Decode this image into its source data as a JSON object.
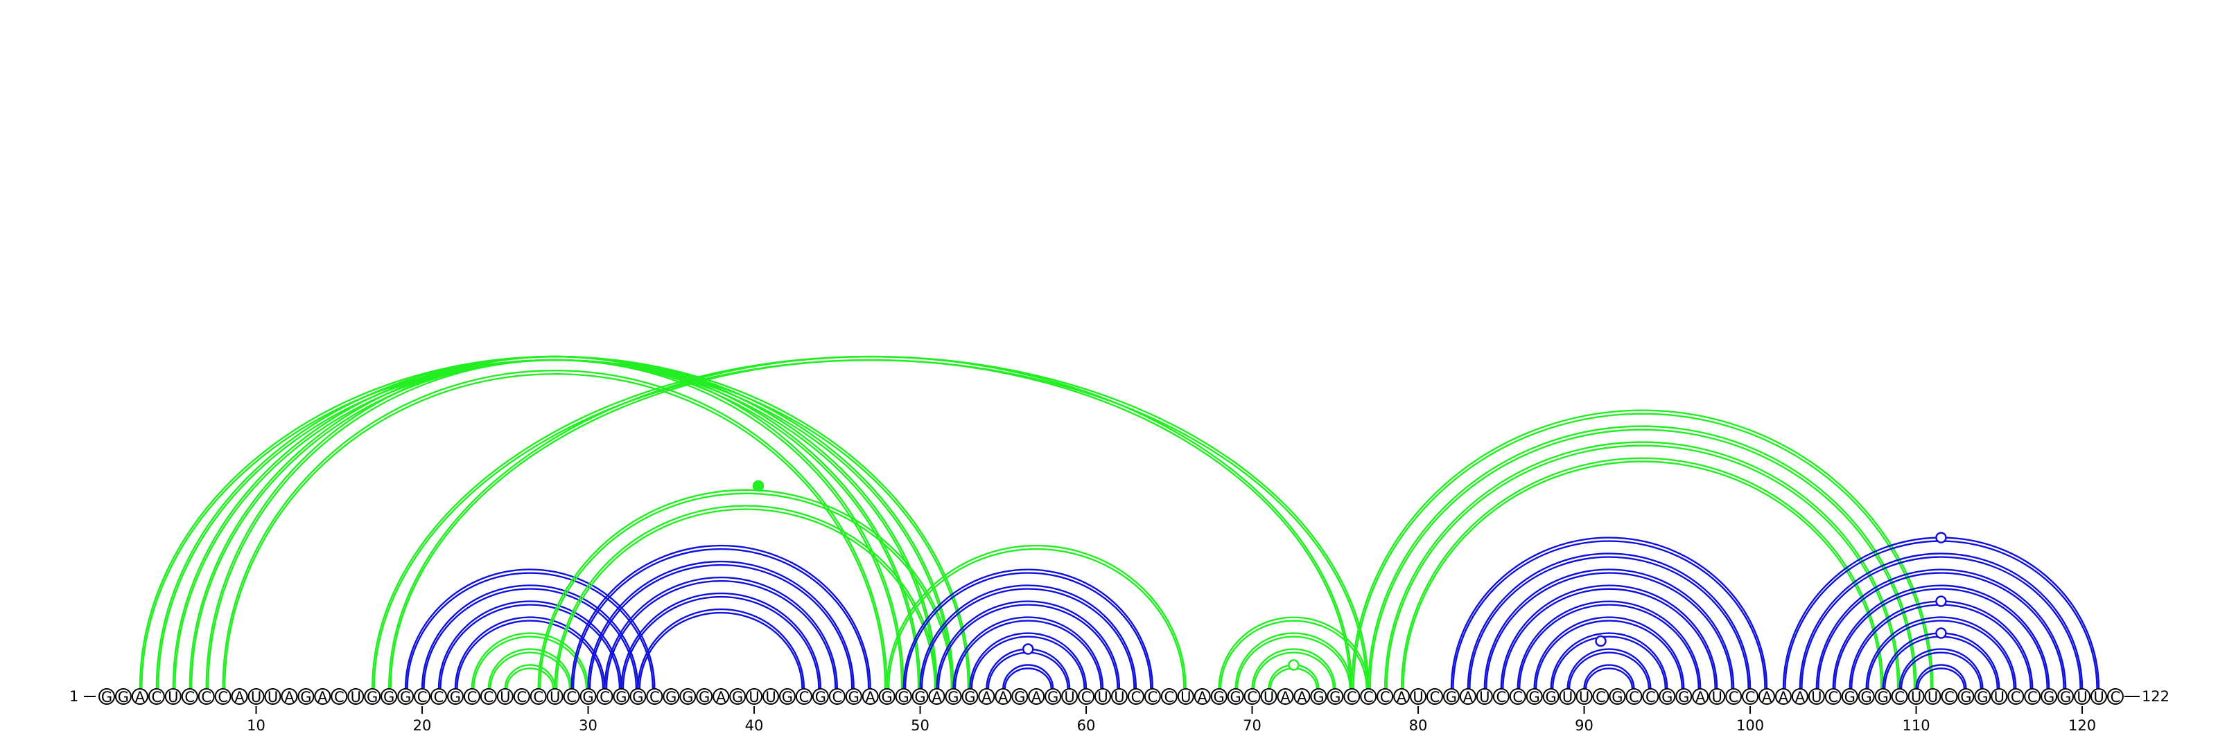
{
  "sequence": {
    "start_label": "1",
    "end_label": "122",
    "nucleotides": "GGACUCCCAUUAGACUGGGCCGCCUCCUCGCGGCGGGAGUUGCGCGAGGGAGGAAGAGUCUUCCCUAGGCUAAGGCCCAUCGAUCCGGUUCGCCGGAUCCAAAUCGGGCUUCGGUCCGGUUC",
    "tick_labels": [
      "10",
      "20",
      "30",
      "40",
      "50",
      "60",
      "70",
      "80",
      "90",
      "100",
      "110",
      "120"
    ]
  },
  "colors": {
    "green": "#22ee22",
    "blue": "#1010dd"
  },
  "arc_groups": [
    {
      "color": "green",
      "pairs": [
        [
          3,
          53
        ],
        [
          4,
          52
        ],
        [
          5,
          51
        ],
        [
          6,
          50
        ],
        [
          7,
          49
        ],
        [
          8,
          48
        ]
      ]
    },
    {
      "color": "green",
      "pairs": [
        [
          17,
          77
        ],
        [
          18,
          76
        ]
      ]
    },
    {
      "color": "blue",
      "pairs": [
        [
          19,
          34
        ],
        [
          20,
          33
        ],
        [
          21,
          32
        ],
        [
          22,
          31
        ]
      ]
    },
    {
      "color": "green",
      "pairs": [
        [
          23,
          30
        ],
        [
          24,
          29
        ],
        [
          25,
          28
        ]
      ]
    },
    {
      "color": "green",
      "pairs": [
        [
          27,
          52
        ],
        [
          28,
          51
        ]
      ]
    },
    {
      "color": "blue",
      "pairs": [
        [
          29,
          47
        ],
        [
          30,
          46
        ],
        [
          31,
          45
        ],
        [
          32,
          44
        ],
        [
          33,
          43
        ]
      ]
    },
    {
      "color": "green",
      "pairs": [
        [
          48,
          66
        ]
      ]
    },
    {
      "color": "blue",
      "pairs": [
        [
          49,
          64
        ],
        [
          50,
          63
        ],
        [
          51,
          62
        ],
        [
          52,
          61
        ],
        [
          53,
          60
        ],
        [
          54,
          59
        ],
        [
          55,
          58
        ]
      ]
    },
    {
      "color": "green",
      "pairs": [
        [
          68,
          77
        ],
        [
          69,
          76
        ],
        [
          70,
          75
        ],
        [
          71,
          74
        ]
      ]
    },
    {
      "color": "green",
      "pairs": [
        [
          76,
          111
        ],
        [
          77,
          110
        ],
        [
          78,
          109
        ],
        [
          79,
          108
        ]
      ]
    },
    {
      "color": "blue",
      "pairs": [
        [
          82,
          101
        ],
        [
          83,
          100
        ],
        [
          84,
          99
        ],
        [
          85,
          98
        ],
        [
          86,
          97
        ],
        [
          87,
          96
        ],
        [
          88,
          95
        ],
        [
          89,
          94
        ],
        [
          90,
          93
        ]
      ]
    },
    {
      "color": "blue",
      "pairs": [
        [
          102,
          121
        ],
        [
          103,
          120
        ],
        [
          104,
          119
        ],
        [
          105,
          118
        ],
        [
          106,
          117
        ],
        [
          107,
          116
        ],
        [
          108,
          115
        ],
        [
          109,
          114
        ],
        [
          110,
          113
        ]
      ]
    }
  ],
  "markers": [
    {
      "color": "green",
      "filled": true,
      "i": 27.5,
      "j": 53
    },
    {
      "color": "blue",
      "filled": false,
      "i": 54,
      "j": 59
    },
    {
      "color": "green",
      "filled": false,
      "i": 71,
      "j": 74
    },
    {
      "color": "blue",
      "filled": false,
      "i": 88,
      "j": 94
    },
    {
      "color": "blue",
      "filled": false,
      "i": 102,
      "j": 121
    },
    {
      "color": "blue",
      "filled": false,
      "i": 106,
      "j": 117
    },
    {
      "color": "blue",
      "filled": false,
      "i": 108,
      "j": 115
    }
  ]
}
